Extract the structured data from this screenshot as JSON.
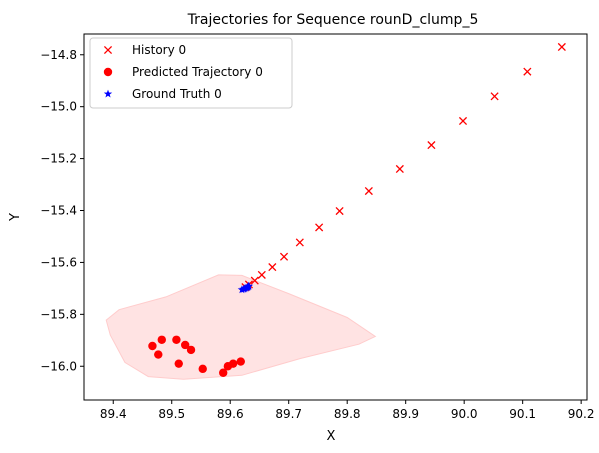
{
  "chart_data": {
    "type": "scatter",
    "title": "Trajectories for Sequence rounD_clump_5",
    "xlabel": "X",
    "ylabel": "Y",
    "xlim": [
      89.35,
      90.21
    ],
    "ylim": [
      -16.13,
      -14.72
    ],
    "xticks": [
      89.4,
      89.5,
      89.6,
      89.7,
      89.8,
      89.9,
      90.0,
      90.1,
      90.2
    ],
    "xtick_labels": [
      "89.4",
      "89.5",
      "89.6",
      "89.7",
      "89.8",
      "89.9",
      "90.0",
      "90.1",
      "90.2"
    ],
    "yticks": [
      -16.0,
      -15.8,
      -15.6,
      -15.4,
      -15.2,
      -15.0,
      -14.8
    ],
    "ytick_labels": [
      "−16.0",
      "−15.8",
      "−15.6",
      "−15.4",
      "−15.2",
      "−15.0",
      "−14.8"
    ],
    "grid": false,
    "legend_position": "top-left",
    "series": [
      {
        "name": "History 0",
        "marker": "x",
        "color": "#ff0000",
        "points": [
          [
            90.167,
            -14.77
          ],
          [
            90.108,
            -14.865
          ],
          [
            90.052,
            -14.96
          ],
          [
            89.998,
            -15.055
          ],
          [
            89.944,
            -15.148
          ],
          [
            89.89,
            -15.24
          ],
          [
            89.837,
            -15.325
          ],
          [
            89.787,
            -15.402
          ],
          [
            89.752,
            -15.465
          ],
          [
            89.719,
            -15.523
          ],
          [
            89.692,
            -15.578
          ],
          [
            89.672,
            -15.618
          ],
          [
            89.654,
            -15.648
          ],
          [
            89.642,
            -15.67
          ],
          [
            89.632,
            -15.685
          ],
          [
            89.626,
            -15.695
          ]
        ]
      },
      {
        "name": "Predicted Trajectory 0",
        "marker": "o",
        "color": "#ff0000",
        "points": [
          [
            89.467,
            -15.922
          ],
          [
            89.483,
            -15.898
          ],
          [
            89.477,
            -15.955
          ],
          [
            89.508,
            -15.898
          ],
          [
            89.523,
            -15.918
          ],
          [
            89.533,
            -15.937
          ],
          [
            89.512,
            -15.99
          ],
          [
            89.553,
            -16.01
          ],
          [
            89.588,
            -16.025
          ],
          [
            89.596,
            -16.0
          ],
          [
            89.605,
            -15.99
          ],
          [
            89.618,
            -15.982
          ]
        ]
      },
      {
        "name": "Ground Truth 0",
        "marker": "*",
        "color": "#0000ff",
        "points": [
          [
            89.62,
            -15.705
          ],
          [
            89.623,
            -15.703
          ],
          [
            89.625,
            -15.701
          ],
          [
            89.627,
            -15.699
          ],
          [
            89.629,
            -15.697
          ],
          [
            89.63,
            -15.695
          ],
          [
            89.631,
            -15.693
          ],
          [
            89.632,
            -15.691
          ]
        ]
      }
    ],
    "uncertainty_region": {
      "color": "#ffcccc",
      "polygon": [
        [
          89.388,
          -15.822
        ],
        [
          89.41,
          -15.782
        ],
        [
          89.49,
          -15.733
        ],
        [
          89.58,
          -15.648
        ],
        [
          89.62,
          -15.65
        ],
        [
          89.7,
          -15.72
        ],
        [
          89.8,
          -15.812
        ],
        [
          89.848,
          -15.885
        ],
        [
          89.82,
          -15.915
        ],
        [
          89.72,
          -15.97
        ],
        [
          89.62,
          -16.035
        ],
        [
          89.52,
          -16.05
        ],
        [
          89.46,
          -16.04
        ],
        [
          89.42,
          -15.985
        ],
        [
          89.395,
          -15.88
        ]
      ]
    }
  }
}
